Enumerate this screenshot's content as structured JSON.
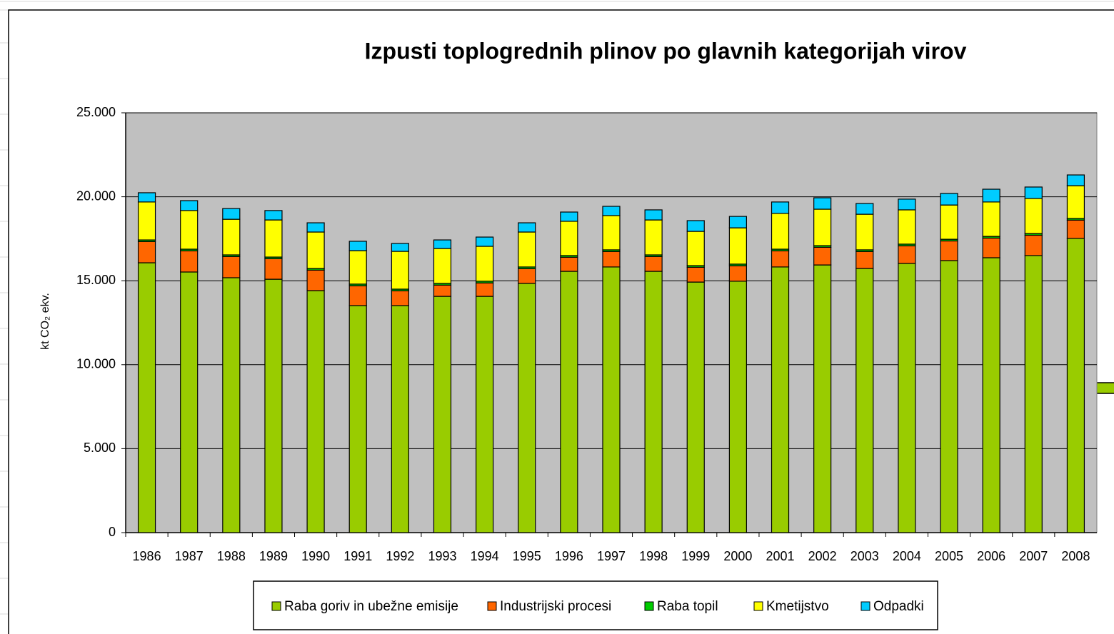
{
  "chart_data": {
    "type": "bar",
    "stacked": true,
    "title": "Izpusti toplogrednih plinov po glavnih kategorijah virov",
    "y_label": "kt CO₂ ekv.",
    "categories": [
      "1986",
      "1987",
      "1988",
      "1989",
      "1990",
      "1991",
      "1992",
      "1993",
      "1994",
      "1995",
      "1996",
      "1997",
      "1998",
      "1999",
      "2000",
      "2001",
      "2002",
      "2003",
      "2004",
      "2005",
      "2006",
      "2007",
      "2008"
    ],
    "series": [
      {
        "name": "Raba goriv in ubežne emisije",
        "color": "#99cc00",
        "values": [
          16070,
          15520,
          15180,
          15090,
          14410,
          13520,
          13520,
          14070,
          14070,
          14840,
          15560,
          15820,
          15560,
          14920,
          14970,
          15820,
          15940,
          15730,
          16030,
          16200,
          16370,
          16500,
          17520
        ]
      },
      {
        "name": "Industrijski procesi",
        "color": "#ff6600",
        "values": [
          1260,
          1260,
          1260,
          1220,
          1220,
          1180,
          880,
          670,
          800,
          880,
          840,
          920,
          880,
          880,
          920,
          960,
          1050,
          1010,
          1050,
          1170,
          1170,
          1210,
          1090
        ]
      },
      {
        "name": "Raba topil",
        "color": "#00cc00",
        "values": [
          100,
          100,
          100,
          100,
          100,
          100,
          100,
          100,
          100,
          100,
          100,
          100,
          100,
          100,
          100,
          100,
          100,
          100,
          100,
          100,
          100,
          100,
          100
        ]
      },
      {
        "name": "Kmetijstvo",
        "color": "#ffff00",
        "values": [
          2260,
          2300,
          2120,
          2210,
          2170,
          1990,
          2250,
          2080,
          2080,
          2080,
          2040,
          2040,
          2080,
          2040,
          2160,
          2130,
          2170,
          2120,
          2040,
          2040,
          2050,
          2090,
          1950
        ]
      },
      {
        "name": "Odpadki",
        "color": "#00ccff",
        "values": [
          550,
          590,
          640,
          560,
          550,
          560,
          470,
          510,
          550,
          550,
          550,
          550,
          600,
          640,
          680,
          680,
          680,
          640,
          640,
          690,
          760,
          680,
          640
        ]
      }
    ],
    "ylim": [
      0,
      25000
    ],
    "yticks": [
      0,
      {
        "value": 5000,
        "label": "5.000"
      },
      {
        "value": 10000,
        "label": "10.000"
      },
      {
        "value": 15000,
        "label": "15.000"
      },
      {
        "value": 20000,
        "label": "20.000"
      },
      {
        "value": 25000,
        "label": "25.000"
      }
    ],
    "grid": true,
    "plot_background": "#c0c0c0",
    "legend": "bottom"
  }
}
